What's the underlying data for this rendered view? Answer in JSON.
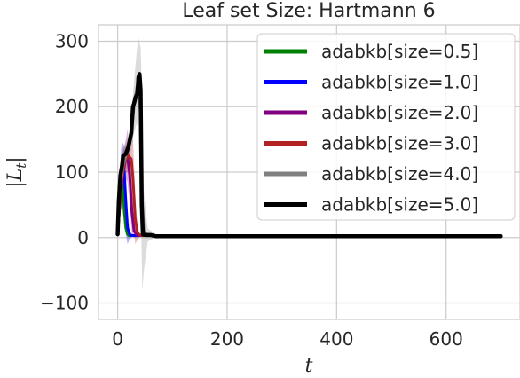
{
  "chart_data": {
    "type": "line",
    "title": "Leaf set Size: Hartmann 6",
    "xlabel": "t",
    "ylabel_main": "|L",
    "ylabel_sub": "t",
    "ylabel_close": "|",
    "xlim": [
      -35,
      735
    ],
    "ylim": [
      -125,
      325
    ],
    "xticks": [
      0,
      200,
      400,
      600
    ],
    "yticks": [
      -100,
      0,
      100,
      200,
      300
    ],
    "xtick_labels": [
      "0",
      "200",
      "400",
      "600"
    ],
    "ytick_labels": [
      "−100",
      "0",
      "100",
      "200",
      "300"
    ],
    "grid": true,
    "legend_position": "upper right",
    "series": [
      {
        "name": "adabkb[size=0.5]",
        "color": "#008000",
        "x": [
          0,
          2,
          5,
          8,
          10,
          12,
          15,
          18,
          20,
          25,
          30,
          40,
          60,
          100,
          300,
          500,
          700
        ],
        "y": [
          5,
          30,
          70,
          95,
          80,
          40,
          15,
          5,
          3,
          3,
          3,
          3,
          3,
          3,
          3,
          3,
          3
        ],
        "band": [
          0,
          10,
          30,
          45,
          40,
          25,
          10,
          3,
          2,
          1,
          0,
          0,
          0,
          0,
          0,
          0,
          0
        ]
      },
      {
        "name": "adabkb[size=1.0]",
        "color": "#0000ff",
        "x": [
          0,
          3,
          6,
          9,
          12,
          15,
          18,
          22,
          26,
          30,
          40,
          60,
          100,
          700
        ],
        "y": [
          5,
          40,
          90,
          115,
          100,
          55,
          15,
          5,
          3,
          3,
          3,
          3,
          3,
          3
        ],
        "band": [
          0,
          20,
          45,
          30,
          40,
          50,
          25,
          8,
          2,
          0,
          0,
          0,
          0,
          0
        ]
      },
      {
        "name": "adabkb[size=2.0]",
        "color": "#800080",
        "x": [
          0,
          5,
          10,
          15,
          18,
          22,
          26,
          30,
          35,
          40,
          60,
          100,
          700
        ],
        "y": [
          5,
          60,
          100,
          120,
          125,
          95,
          40,
          10,
          4,
          3,
          3,
          3,
          3
        ],
        "band": [
          0,
          20,
          30,
          30,
          40,
          45,
          35,
          10,
          3,
          0,
          0,
          0,
          0
        ]
      },
      {
        "name": "adabkb[size=3.0]",
        "color": "#b22222",
        "x": [
          0,
          5,
          10,
          15,
          20,
          25,
          28,
          32,
          36,
          40,
          50,
          60,
          100,
          700
        ],
        "y": [
          5,
          70,
          105,
          120,
          125,
          120,
          90,
          30,
          8,
          4,
          3,
          3,
          3,
          3
        ],
        "band": [
          0,
          25,
          30,
          20,
          25,
          45,
          60,
          40,
          12,
          3,
          0,
          0,
          0,
          0
        ]
      },
      {
        "name": "adabkb[size=4.0]",
        "color": "#808080",
        "x": [
          0,
          5,
          10,
          15,
          20,
          25,
          30,
          35,
          38,
          42,
          45,
          48,
          55,
          70,
          100,
          700
        ],
        "y": [
          5,
          80,
          110,
          125,
          135,
          160,
          200,
          230,
          235,
          180,
          60,
          10,
          4,
          3,
          3,
          3
        ],
        "band": [
          0,
          25,
          30,
          20,
          20,
          25,
          40,
          55,
          70,
          110,
          140,
          60,
          10,
          2,
          0,
          0
        ]
      },
      {
        "name": "adabkb[size=5.0]",
        "color": "#000000",
        "x": [
          0,
          2,
          5,
          8,
          10,
          15,
          20,
          25,
          28,
          30,
          33,
          36,
          38,
          40,
          42,
          44,
          46,
          50,
          55,
          60,
          65,
          70,
          80,
          100,
          200,
          300,
          400,
          500,
          600,
          700
        ],
        "y": [
          5,
          55,
          95,
          110,
          125,
          128,
          140,
          160,
          200,
          205,
          215,
          220,
          245,
          250,
          225,
          50,
          5,
          4,
          4,
          4,
          3,
          2,
          2,
          2,
          2,
          2,
          2,
          2,
          2,
          2
        ],
        "band": [
          0,
          0,
          0,
          0,
          0,
          0,
          0,
          0,
          0,
          0,
          0,
          0,
          0,
          0,
          0,
          0,
          0,
          0,
          0,
          0,
          0,
          0,
          0,
          0,
          0,
          0,
          0,
          0,
          0,
          0
        ]
      }
    ]
  }
}
